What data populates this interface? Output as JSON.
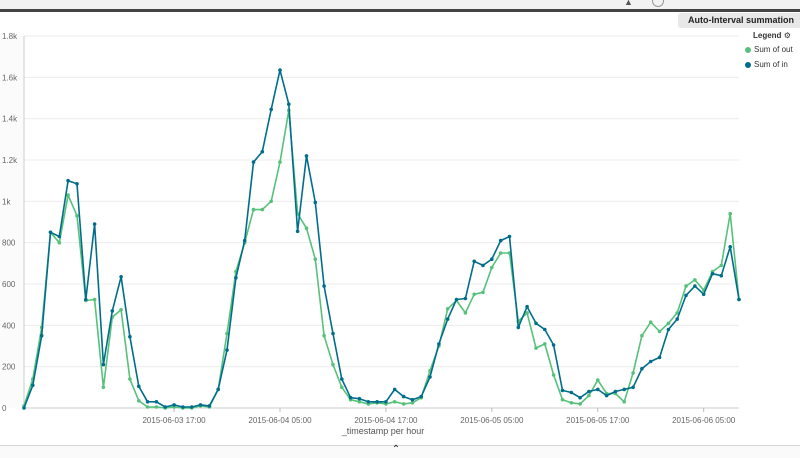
{
  "header": {
    "interval_label": "Auto-Interval summation"
  },
  "legend": {
    "title": "Legend",
    "items": [
      {
        "label": "Sum of out",
        "color": "#57c17b"
      },
      {
        "label": "Sum of in",
        "color": "#006e8a"
      }
    ]
  },
  "colors": {
    "grid": "#ececec",
    "axis": "#cccccc",
    "shade": "#fbfbfb"
  },
  "chart_data": {
    "type": "line",
    "xlabel": "_timestamp per hour",
    "ylabel": "",
    "ylim": [
      0,
      1800
    ],
    "yticks": [
      {
        "value": 0,
        "label": "0"
      },
      {
        "value": 200,
        "label": "200"
      },
      {
        "value": 400,
        "label": "400"
      },
      {
        "value": 600,
        "label": "600"
      },
      {
        "value": 800,
        "label": "800"
      },
      {
        "value": 1000,
        "label": "1k"
      },
      {
        "value": 1200,
        "label": "1.2k"
      },
      {
        "value": 1400,
        "label": "1.4k"
      },
      {
        "value": 1600,
        "label": "1.6k"
      },
      {
        "value": 1800,
        "label": "1.8k"
      }
    ],
    "xticks": [
      {
        "hour": 17,
        "label": "2015-06-03 17:00"
      },
      {
        "hour": 29,
        "label": "2015-06-04 05:00"
      },
      {
        "hour": 41,
        "label": "2015-06-04 17:00"
      },
      {
        "hour": 53,
        "label": "2015-06-05 05:00"
      },
      {
        "hour": 65,
        "label": "2015-06-05 17:00"
      },
      {
        "hour": 77,
        "label": "2015-06-06 05:00"
      }
    ],
    "x_unit": "hours since 2015-06-03 12:00",
    "grid": true,
    "legend_position": "top-right",
    "series": [
      {
        "name": "Sum of out",
        "color": "#57c17b",
        "points": [
          [
            0,
            10
          ],
          [
            1,
            140
          ],
          [
            2,
            390
          ],
          [
            3,
            850
          ],
          [
            4,
            800
          ],
          [
            5,
            1030
          ],
          [
            6,
            930
          ],
          [
            7,
            520
          ],
          [
            8,
            525
          ],
          [
            9,
            100
          ],
          [
            10,
            440
          ],
          [
            11,
            475
          ],
          [
            12,
            140
          ],
          [
            13,
            35
          ],
          [
            14,
            5
          ],
          [
            15,
            5
          ],
          [
            16,
            0
          ],
          [
            17,
            5
          ],
          [
            18,
            0
          ],
          [
            19,
            0
          ],
          [
            20,
            10
          ],
          [
            21,
            5
          ],
          [
            22,
            90
          ],
          [
            23,
            360
          ],
          [
            24,
            660
          ],
          [
            25,
            800
          ],
          [
            26,
            960
          ],
          [
            27,
            960
          ],
          [
            28,
            1000
          ],
          [
            29,
            1190
          ],
          [
            30,
            1440
          ],
          [
            31,
            940
          ],
          [
            32,
            870
          ],
          [
            33,
            720
          ],
          [
            34,
            350
          ],
          [
            35,
            210
          ],
          [
            36,
            100
          ],
          [
            37,
            40
          ],
          [
            38,
            30
          ],
          [
            39,
            20
          ],
          [
            40,
            25
          ],
          [
            41,
            20
          ],
          [
            42,
            30
          ],
          [
            43,
            20
          ],
          [
            44,
            25
          ],
          [
            45,
            50
          ],
          [
            46,
            180
          ],
          [
            47,
            300
          ],
          [
            48,
            480
          ],
          [
            49,
            520
          ],
          [
            50,
            460
          ],
          [
            51,
            550
          ],
          [
            52,
            560
          ],
          [
            53,
            680
          ],
          [
            54,
            750
          ],
          [
            55,
            750
          ],
          [
            56,
            420
          ],
          [
            57,
            460
          ],
          [
            58,
            290
          ],
          [
            59,
            310
          ],
          [
            60,
            160
          ],
          [
            61,
            40
          ],
          [
            62,
            25
          ],
          [
            63,
            20
          ],
          [
            64,
            60
          ],
          [
            65,
            135
          ],
          [
            66,
            70
          ],
          [
            67,
            70
          ],
          [
            68,
            30
          ],
          [
            69,
            170
          ],
          [
            70,
            350
          ],
          [
            71,
            415
          ],
          [
            72,
            370
          ],
          [
            73,
            410
          ],
          [
            74,
            460
          ],
          [
            75,
            590
          ],
          [
            76,
            620
          ],
          [
            77,
            570
          ],
          [
            78,
            660
          ],
          [
            79,
            690
          ],
          [
            80,
            940
          ],
          [
            81,
            525
          ]
        ]
      },
      {
        "name": "Sum of in",
        "color": "#006e8a",
        "points": [
          [
            0,
            0
          ],
          [
            1,
            110
          ],
          [
            2,
            350
          ],
          [
            3,
            850
          ],
          [
            4,
            830
          ],
          [
            5,
            1100
          ],
          [
            6,
            1085
          ],
          [
            7,
            525
          ],
          [
            8,
            890
          ],
          [
            9,
            210
          ],
          [
            10,
            470
          ],
          [
            11,
            635
          ],
          [
            12,
            345
          ],
          [
            13,
            105
          ],
          [
            14,
            30
          ],
          [
            15,
            30
          ],
          [
            16,
            5
          ],
          [
            17,
            15
          ],
          [
            18,
            5
          ],
          [
            19,
            5
          ],
          [
            20,
            15
          ],
          [
            21,
            10
          ],
          [
            22,
            90
          ],
          [
            23,
            280
          ],
          [
            24,
            630
          ],
          [
            25,
            810
          ],
          [
            26,
            1190
          ],
          [
            27,
            1240
          ],
          [
            28,
            1445
          ],
          [
            29,
            1635
          ],
          [
            30,
            1470
          ],
          [
            31,
            855
          ],
          [
            32,
            1220
          ],
          [
            33,
            995
          ],
          [
            34,
            590
          ],
          [
            35,
            360
          ],
          [
            36,
            140
          ],
          [
            37,
            50
          ],
          [
            38,
            45
          ],
          [
            39,
            30
          ],
          [
            40,
            30
          ],
          [
            41,
            30
          ],
          [
            42,
            90
          ],
          [
            43,
            55
          ],
          [
            44,
            40
          ],
          [
            45,
            55
          ],
          [
            46,
            150
          ],
          [
            47,
            310
          ],
          [
            48,
            430
          ],
          [
            49,
            525
          ],
          [
            50,
            530
          ],
          [
            51,
            710
          ],
          [
            52,
            690
          ],
          [
            53,
            720
          ],
          [
            54,
            810
          ],
          [
            55,
            830
          ],
          [
            56,
            390
          ],
          [
            57,
            490
          ],
          [
            58,
            410
          ],
          [
            59,
            380
          ],
          [
            60,
            305
          ],
          [
            61,
            85
          ],
          [
            62,
            75
          ],
          [
            63,
            50
          ],
          [
            64,
            80
          ],
          [
            65,
            90
          ],
          [
            66,
            60
          ],
          [
            67,
            80
          ],
          [
            68,
            90
          ],
          [
            69,
            100
          ],
          [
            70,
            190
          ],
          [
            71,
            225
          ],
          [
            72,
            245
          ],
          [
            73,
            380
          ],
          [
            74,
            430
          ],
          [
            75,
            545
          ],
          [
            76,
            590
          ],
          [
            77,
            550
          ],
          [
            78,
            650
          ],
          [
            79,
            640
          ],
          [
            80,
            780
          ],
          [
            81,
            525
          ]
        ]
      }
    ]
  }
}
